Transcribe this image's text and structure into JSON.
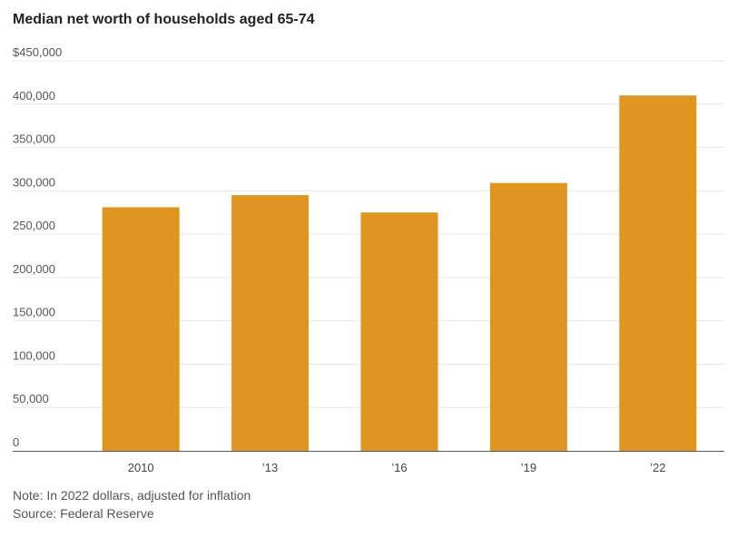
{
  "chart_data": {
    "type": "bar",
    "title": "Median net worth of households aged 65-74",
    "categories": [
      "2010",
      "’13",
      "’16",
      "’19",
      "’22"
    ],
    "values": [
      281000,
      295000,
      275000,
      309000,
      410000
    ],
    "ylim": [
      0,
      450000
    ],
    "yticks": [
      0,
      50000,
      100000,
      150000,
      200000,
      250000,
      300000,
      350000,
      400000,
      450000
    ],
    "ytick_labels": [
      "0",
      "50,000",
      "100,000",
      "150,000",
      "200,000",
      "250,000",
      "300,000",
      "350,000",
      "400,000",
      "$450,000"
    ],
    "xlabel": "",
    "ylabel": "",
    "grid": true,
    "bar_color": "#e09422"
  },
  "footer": {
    "note": "Note: In 2022 dollars, adjusted for inflation",
    "source": "Source: Federal Reserve"
  }
}
